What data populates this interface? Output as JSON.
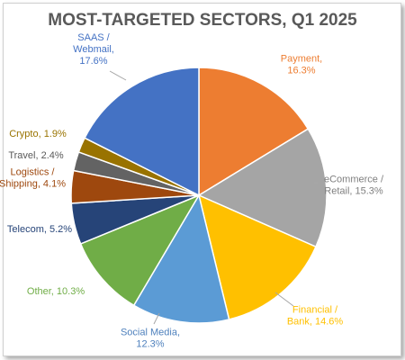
{
  "chart_data": {
    "type": "pie",
    "title": "MOST-TARGETED SECTORS, Q1 2025",
    "slices": [
      {
        "label_lines": [
          "Payment,",
          "16.3%"
        ],
        "category": "Payment",
        "value": 16.3,
        "color": "#ED7D31"
      },
      {
        "label_lines": [
          "eCommerce /",
          "Retail, 15.3%"
        ],
        "category": "eCommerce / Retail",
        "value": 15.3,
        "color": "#A5A5A5"
      },
      {
        "label_lines": [
          "Financial /",
          "Bank, 14.6%"
        ],
        "category": "Financial / Bank",
        "value": 14.6,
        "color": "#FFC000"
      },
      {
        "label_lines": [
          "Social Media,",
          "12.3%"
        ],
        "category": "Social Media",
        "value": 12.3,
        "color": "#5B9BD5"
      },
      {
        "label_lines": [
          "Other, 10.3%"
        ],
        "category": "Other",
        "value": 10.3,
        "color": "#70AD47"
      },
      {
        "label_lines": [
          "Telecom, 5.2%"
        ],
        "category": "Telecom",
        "value": 5.2,
        "color": "#264478"
      },
      {
        "label_lines": [
          "Logistics /",
          "Shipping, 4.1%"
        ],
        "category": "Logistics / Shipping",
        "value": 4.1,
        "color": "#9E480E"
      },
      {
        "label_lines": [
          "Travel, 2.4%"
        ],
        "category": "Travel",
        "value": 2.4,
        "color": "#636363"
      },
      {
        "label_lines": [
          "Crypto, 1.9%"
        ],
        "category": "Crypto",
        "value": 1.9,
        "color": "#997300"
      },
      {
        "label_lines": [
          "SAAS /",
          "Webmail,",
          "17.6%"
        ],
        "category": "SAAS / Webmail",
        "value": 17.6,
        "color": "#4472C4"
      }
    ],
    "legend": "none",
    "start_angle": "12 o'clock, clockwise"
  }
}
